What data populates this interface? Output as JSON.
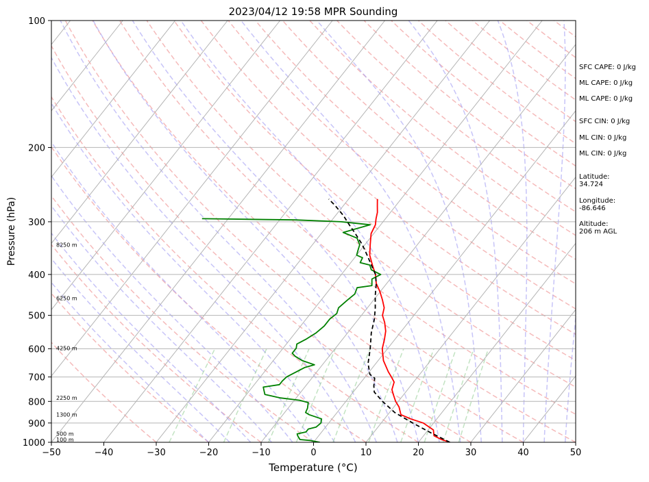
{
  "chart_data": {
    "type": "line",
    "title": "2023/04/12 19:58 MPR Sounding",
    "xlabel": "Temperature (°C)",
    "ylabel": "Pressure (hPa)",
    "xlim": [
      -50,
      50
    ],
    "ylim": [
      1000,
      100
    ],
    "y_scale": "log",
    "grid": true,
    "x_ticks": [
      -50,
      -40,
      -30,
      -20,
      -10,
      0,
      10,
      20,
      30,
      40,
      50
    ],
    "y_ticks": [
      1000,
      900,
      800,
      700,
      600,
      500,
      400,
      300,
      200,
      100
    ],
    "height_labels": [
      {
        "p": 985,
        "label": "100 m"
      },
      {
        "p": 955,
        "label": "500 m"
      },
      {
        "p": 860,
        "label": "1300 m"
      },
      {
        "p": 785,
        "label": "2250 m"
      },
      {
        "p": 598,
        "label": "4250 m"
      },
      {
        "p": 455,
        "label": "6250 m"
      },
      {
        "p": 340,
        "label": "8250 m"
      }
    ],
    "series": [
      {
        "key": "temperature",
        "color": "#ff0000",
        "points": [
          [
            26.0,
            1000
          ],
          [
            24.0,
            985
          ],
          [
            22.0,
            965
          ],
          [
            21.0,
            935
          ],
          [
            18.0,
            900
          ],
          [
            15.0,
            880
          ],
          [
            12.5,
            860
          ],
          [
            11.0,
            825
          ],
          [
            9.5,
            800
          ],
          [
            8.0,
            770
          ],
          [
            7.0,
            750
          ],
          [
            6.3,
            720
          ],
          [
            5.0,
            700
          ],
          [
            3.6,
            680
          ],
          [
            1.0,
            640
          ],
          [
            -1.0,
            600
          ],
          [
            -2.0,
            570
          ],
          [
            -3.0,
            545
          ],
          [
            -4.5,
            520
          ],
          [
            -6.0,
            500
          ],
          [
            -6.8,
            480
          ],
          [
            -8.3,
            460
          ],
          [
            -10.0,
            440
          ],
          [
            -12.0,
            420
          ],
          [
            -13.5,
            400
          ],
          [
            -15.5,
            380
          ],
          [
            -17.5,
            360
          ],
          [
            -19.0,
            340
          ],
          [
            -20.5,
            320
          ],
          [
            -21.0,
            305
          ],
          [
            -21.8,
            295
          ],
          [
            -22.5,
            285
          ],
          [
            -23.5,
            275
          ],
          [
            -24.5,
            265
          ]
        ]
      },
      {
        "key": "dewpoint",
        "color": "#008000",
        "points": [
          [
            1.2,
            1000
          ],
          [
            -1.0,
            990
          ],
          [
            -3.0,
            985
          ],
          [
            -4.0,
            965
          ],
          [
            -4.4,
            955
          ],
          [
            -3.0,
            945
          ],
          [
            -3.0,
            930
          ],
          [
            -1.8,
            920
          ],
          [
            -1.5,
            900
          ],
          [
            -2.0,
            880
          ],
          [
            -5.0,
            860
          ],
          [
            -6.0,
            850
          ],
          [
            -6.3,
            830
          ],
          [
            -7.0,
            805
          ],
          [
            -9.0,
            795
          ],
          [
            -13.0,
            785
          ],
          [
            -16.5,
            770
          ],
          [
            -17.2,
            755
          ],
          [
            -17.9,
            740
          ],
          [
            -15.2,
            730
          ],
          [
            -15.2,
            715
          ],
          [
            -15.0,
            700
          ],
          [
            -13.0,
            665
          ],
          [
            -11.5,
            655
          ],
          [
            -14.5,
            640
          ],
          [
            -16.5,
            625
          ],
          [
            -17.5,
            615
          ],
          [
            -17.5,
            598
          ],
          [
            -18.0,
            585
          ],
          [
            -17.0,
            570
          ],
          [
            -16.0,
            550
          ],
          [
            -15.5,
            530
          ],
          [
            -15.5,
            510
          ],
          [
            -15.0,
            495
          ],
          [
            -15.5,
            480
          ],
          [
            -15.0,
            460
          ],
          [
            -14.5,
            445
          ],
          [
            -15.0,
            430
          ],
          [
            -12.5,
            425
          ],
          [
            -13.5,
            410
          ],
          [
            -12.5,
            400
          ],
          [
            -15.0,
            390
          ],
          [
            -16.0,
            380
          ],
          [
            -18.2,
            375
          ],
          [
            -18.5,
            365
          ],
          [
            -20.0,
            360
          ],
          [
            -20.5,
            350
          ],
          [
            -21.0,
            340
          ],
          [
            -22.5,
            328
          ],
          [
            -26.0,
            318
          ],
          [
            -22.0,
            305
          ],
          [
            -28.0,
            300
          ],
          [
            -37.0,
            297
          ],
          [
            -55.0,
            295
          ]
        ]
      },
      {
        "key": "parcel",
        "color": "#000000",
        "dash": "6,4",
        "points": [
          [
            26.0,
            1000
          ],
          [
            21.0,
            950
          ],
          [
            16.0,
            900
          ],
          [
            11.0,
            850
          ],
          [
            7.0,
            800
          ],
          [
            4.0,
            760
          ],
          [
            3.0,
            735
          ],
          [
            2.0,
            705
          ],
          [
            0.5,
            690
          ],
          [
            -1.5,
            650
          ],
          [
            -3.3,
            600
          ],
          [
            -5.5,
            550
          ],
          [
            -7.0,
            510
          ],
          [
            -8.5,
            480
          ],
          [
            -10.3,
            450
          ],
          [
            -12.0,
            420
          ],
          [
            -13.5,
            400
          ],
          [
            -15.7,
            380
          ],
          [
            -18.0,
            360
          ],
          [
            -20.5,
            340
          ],
          [
            -23.5,
            320
          ],
          [
            -26.0,
            305
          ],
          [
            -28.5,
            290
          ],
          [
            -31.5,
            275
          ],
          [
            -33.8,
            265
          ]
        ]
      }
    ]
  },
  "stats": {
    "sfc_cape": "SFC CAPE: 0 J/kg",
    "ml_cape_1": "ML CAPE: 0 J/kg",
    "ml_cape_2": "ML CAPE: 0 J/kg",
    "sfc_cin": "SFC CIN: 0 J/kg",
    "ml_cin_1": "ML CIN: 0 J/kg",
    "ml_cin_2": "ML CIN: 0 J/kg",
    "latitude": "Latitude:\n34.724",
    "longitude": "Longitude:\n-86.646",
    "altitude": "Altitude:\n206 m AGL"
  }
}
